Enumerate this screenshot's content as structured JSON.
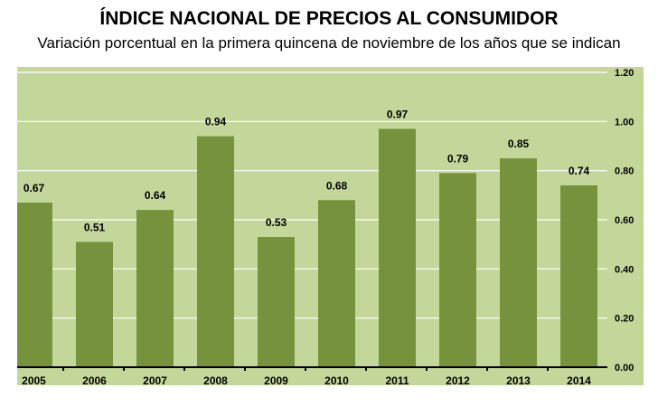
{
  "chart_data": {
    "type": "bar",
    "title": "ÍNDICE NACIONAL DE PRECIOS AL CONSUMIDOR",
    "subtitle": "Variación porcentual en la primera quincena de noviembre de los años que se indican",
    "categories": [
      "2005",
      "2006",
      "2007",
      "2008",
      "2009",
      "2010",
      "2011",
      "2012",
      "2013",
      "2014"
    ],
    "values": [
      0.67,
      0.51,
      0.64,
      0.94,
      0.53,
      0.68,
      0.97,
      0.79,
      0.85,
      0.74
    ],
    "data_labels": [
      "0.67",
      "0.51",
      "0.64",
      "0.94",
      "0.53",
      "0.68",
      "0.97",
      "0.79",
      "0.85",
      "0.74"
    ],
    "xlabel": "",
    "ylabel": "",
    "ylim": [
      0,
      1.2
    ],
    "yticks": [
      "0.00",
      "0.20",
      "0.40",
      "0.60",
      "0.80",
      "1.00",
      "1.20"
    ],
    "y_axis_position": "right",
    "grid": true,
    "colors": {
      "bar": "#76923c",
      "background": "#c4d79b",
      "grid": "#ffffff"
    }
  }
}
